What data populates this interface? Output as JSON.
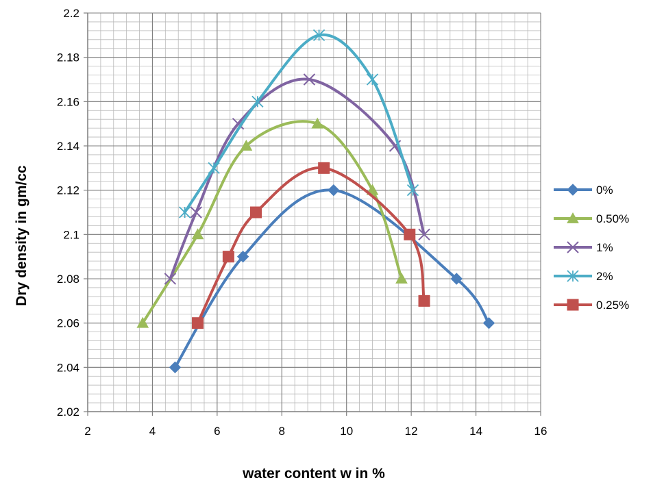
{
  "chart_data": {
    "type": "line",
    "title": "",
    "xlabel": "water content  w in %",
    "ylabel": "Dry density in gm/cc",
    "xlim": [
      2,
      16
    ],
    "ylim": [
      2.02,
      2.2
    ],
    "x_ticks": [
      "2",
      "4",
      "6",
      "8",
      "10",
      "12",
      "14",
      "16"
    ],
    "y_ticks": [
      "2.02",
      "2.04",
      "2.06",
      "2.08",
      "2.1",
      "2.12",
      "2.14",
      "2.16",
      "2.18",
      "2.2"
    ],
    "grid": true,
    "minor_grid": true,
    "smooth": true,
    "legend_position": "right",
    "series": [
      {
        "name": "0%",
        "color": "#4A7EBB",
        "marker": "diamond",
        "points": [
          [
            4.7,
            2.04
          ],
          [
            6.8,
            2.09
          ],
          [
            9.6,
            2.12
          ],
          [
            13.4,
            2.08
          ],
          [
            14.4,
            2.06
          ]
        ]
      },
      {
        "name": "0.50%",
        "color": "#9BBB59",
        "marker": "triangle",
        "points": [
          [
            3.7,
            2.06
          ],
          [
            5.4,
            2.1
          ],
          [
            6.9,
            2.14
          ],
          [
            9.1,
            2.15
          ],
          [
            10.8,
            2.12
          ],
          [
            11.7,
            2.08
          ]
        ]
      },
      {
        "name": "1%",
        "color": "#8064A2",
        "marker": "x",
        "points": [
          [
            4.55,
            2.08
          ],
          [
            5.35,
            2.11
          ],
          [
            6.65,
            2.15
          ],
          [
            8.85,
            2.17
          ],
          [
            11.5,
            2.14
          ],
          [
            12.4,
            2.1
          ]
        ]
      },
      {
        "name": "2%",
        "color": "#4BACC6",
        "marker": "star",
        "points": [
          [
            5.0,
            2.11
          ],
          [
            5.9,
            2.13
          ],
          [
            7.25,
            2.16
          ],
          [
            9.15,
            2.19
          ],
          [
            10.8,
            2.17
          ],
          [
            12.05,
            2.12
          ]
        ]
      },
      {
        "name": "0.25%",
        "color": "#C0504D",
        "marker": "square",
        "points": [
          [
            5.4,
            2.06
          ],
          [
            6.35,
            2.09
          ],
          [
            7.2,
            2.11
          ],
          [
            9.3,
            2.13
          ],
          [
            11.95,
            2.1
          ],
          [
            12.4,
            2.07
          ]
        ]
      }
    ]
  }
}
